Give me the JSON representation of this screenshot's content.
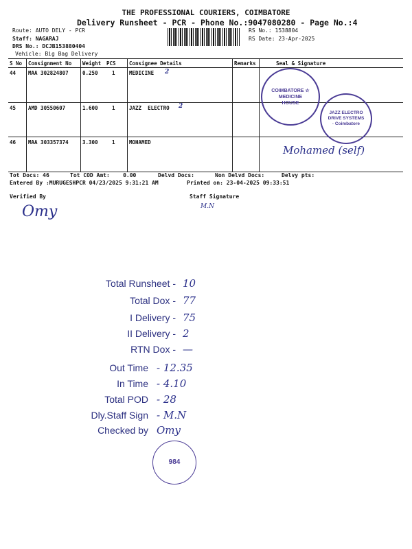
{
  "header": {
    "company": "THE PROFESSIONAL COURIERS, COIMBATORE",
    "subtitle": "Delivery Runsheet - PCR - Phone No.:9047080280 - Page No.:4",
    "route": "Route: AUTO DELY - PCR",
    "staff": "Staff: NAGARAJ",
    "drs_no": "DRS No.: DCJB153880404",
    "vehicle": "Vehicle: Big Bag Delivery",
    "rs_no": "RS No.: 1538804",
    "rs_date": "RS Date: 23-Apr-2025"
  },
  "table": {
    "columns": [
      "S No",
      "Consignment No",
      "Weight",
      "PCS",
      "Consignee Details",
      "Remarks",
      "Seal & Signature"
    ],
    "rows": [
      {
        "sno": "44",
        "consignment": "MAA 302824807",
        "weight": "0.250",
        "pcs": "1",
        "consignee": "MEDICINE",
        "mark": "2"
      },
      {
        "sno": "45",
        "consignment": "AMD 30550607",
        "weight": "1.600",
        "pcs": "1",
        "consignee": "JAZZ  ELECTRO",
        "mark": "2"
      },
      {
        "sno": "46",
        "consignment": "MAA 303357374",
        "weight": "3.300",
        "pcs": "1",
        "consignee": "MOHAMED",
        "signature": "Mohamed (self)"
      }
    ]
  },
  "stamps": {
    "medicine": "COIMBATORE ☆ MEDICINE HOUSE",
    "jazz": "JAZZ ELECTRO DRIVE SYSTEMS · Coimbatore",
    "bottom": "984"
  },
  "footer": {
    "tot_docs": "Tot Docs:  46",
    "tot_cod": "Tot COD Amt:    0.00",
    "delvd_docs": "Delvd Docs:",
    "non_delvd_docs": "Non Delvd Docs:",
    "delvy_pts": "Delvy pts:",
    "entered_by": "Entered By :MURUGESHPCR 04/23/2025 9:31:21 AM",
    "printed_on": "Printed on: 23-04-2025 09:33:51",
    "verified_by": "Verified By",
    "staff_signature": "Staff Signature",
    "verified_sign": "Omy",
    "staff_sign": "M.N"
  },
  "summary": [
    {
      "label": "Total Runsheet -",
      "value": "10"
    },
    {
      "label": "Total Dox -",
      "value": "77"
    },
    {
      "label": "I Delivery -",
      "value": "75"
    },
    {
      "label": "II Delivery -",
      "value": "2"
    },
    {
      "label": "RTN Dox -",
      "value": "—"
    },
    {
      "label": "Out Time",
      "value": "- 12.35"
    },
    {
      "label": "In Time",
      "value": "- 4.10"
    },
    {
      "label": "Total POD",
      "value": "- 28"
    },
    {
      "label": "Dly.Staff Sign",
      "value": "- M.N"
    },
    {
      "label": "Checked by",
      "value": "Omy"
    }
  ]
}
